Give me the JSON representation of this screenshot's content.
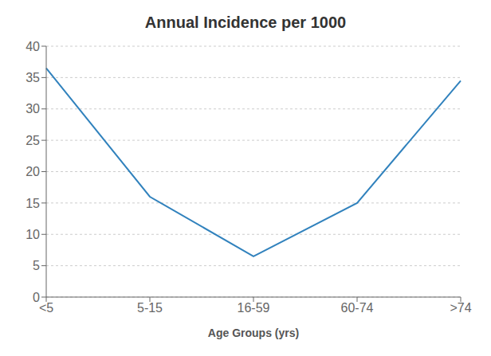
{
  "chart_data": {
    "type": "line",
    "title": "Annual Incidence per 1000",
    "xlabel": "Age Groups (yrs)",
    "categories": [
      "<5",
      "5-15",
      "16-59",
      "60-74",
      ">74"
    ],
    "values": [
      36.5,
      16.0,
      6.5,
      15.0,
      34.5
    ],
    "ylim": [
      0,
      40
    ],
    "yticks": [
      0,
      5,
      10,
      15,
      20,
      25,
      30,
      35,
      40
    ],
    "grid": true
  }
}
